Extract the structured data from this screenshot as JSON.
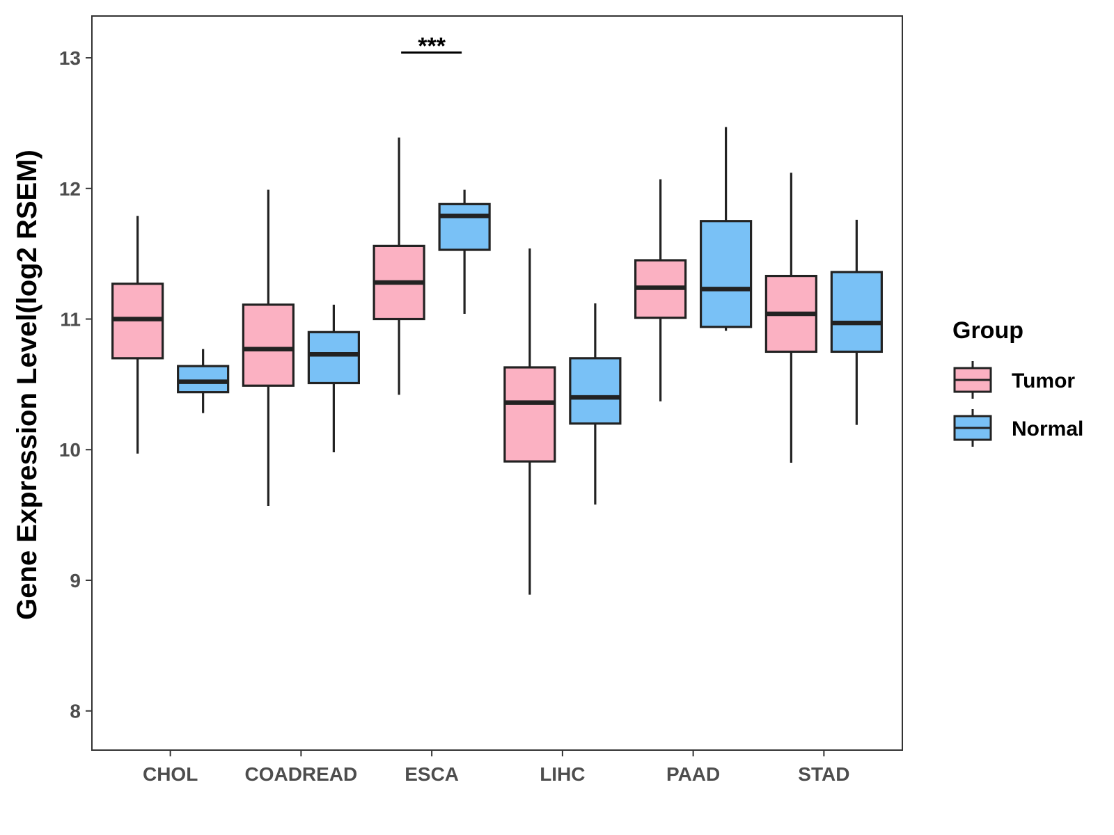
{
  "chart_data": {
    "type": "boxplot",
    "title": "",
    "xlabel": "",
    "ylabel": "Gene Expression Level(log2 RSEM)",
    "ylim": [
      7.7,
      13.32
    ],
    "yticks": [
      8,
      9,
      10,
      11,
      12,
      13
    ],
    "yticks_text": [
      "8",
      "9",
      "10",
      "11",
      "12",
      "13"
    ],
    "categories": [
      "CHOL",
      "COADREAD",
      "ESCA",
      "LIHC",
      "PAAD",
      "STAD"
    ],
    "legend": {
      "title": "Group",
      "position": "right",
      "items": [
        {
          "name": "Tumor",
          "color": "#FBB1C2"
        },
        {
          "name": "Normal",
          "color": "#79C1F6"
        }
      ]
    },
    "series": [
      {
        "name": "Tumor",
        "color": "#FBB1C2",
        "boxes": [
          {
            "category": "CHOL",
            "whisker_low": 9.97,
            "q1": 10.7,
            "median": 11.0,
            "q3": 11.27,
            "whisker_high": 11.79
          },
          {
            "category": "COADREAD",
            "whisker_low": 9.57,
            "q1": 10.49,
            "median": 10.77,
            "q3": 11.11,
            "whisker_high": 11.99
          },
          {
            "category": "ESCA",
            "whisker_low": 10.42,
            "q1": 11.0,
            "median": 11.28,
            "q3": 11.56,
            "whisker_high": 12.39
          },
          {
            "category": "LIHC",
            "whisker_low": 8.89,
            "q1": 9.91,
            "median": 10.36,
            "q3": 10.63,
            "whisker_high": 11.54
          },
          {
            "category": "PAAD",
            "whisker_low": 10.37,
            "q1": 11.01,
            "median": 11.24,
            "q3": 11.45,
            "whisker_high": 12.07
          },
          {
            "category": "STAD",
            "whisker_low": 9.9,
            "q1": 10.75,
            "median": 11.04,
            "q3": 11.33,
            "whisker_high": 12.12
          }
        ]
      },
      {
        "name": "Normal",
        "color": "#79C1F6",
        "boxes": [
          {
            "category": "CHOL",
            "whisker_low": 10.28,
            "q1": 10.44,
            "median": 10.52,
            "q3": 10.64,
            "whisker_high": 10.77
          },
          {
            "category": "COADREAD",
            "whisker_low": 9.98,
            "q1": 10.51,
            "median": 10.73,
            "q3": 10.9,
            "whisker_high": 11.11
          },
          {
            "category": "ESCA",
            "whisker_low": 11.04,
            "q1": 11.53,
            "median": 11.79,
            "q3": 11.88,
            "whisker_high": 11.99
          },
          {
            "category": "LIHC",
            "whisker_low": 9.58,
            "q1": 10.2,
            "median": 10.4,
            "q3": 10.7,
            "whisker_high": 11.12
          },
          {
            "category": "PAAD",
            "whisker_low": 10.91,
            "q1": 10.94,
            "median": 11.23,
            "q3": 11.75,
            "whisker_high": 12.47
          },
          {
            "category": "STAD",
            "whisker_low": 10.19,
            "q1": 10.75,
            "median": 10.97,
            "q3": 11.36,
            "whisker_high": 11.76
          }
        ]
      }
    ],
    "annotations": [
      {
        "text": "***",
        "category": "ESCA",
        "y": 13.04
      }
    ]
  }
}
